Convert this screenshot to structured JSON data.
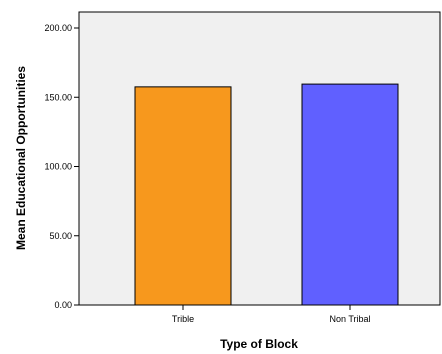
{
  "chart_data": {
    "type": "bar",
    "categories": [
      "Trible",
      "Non Tribal"
    ],
    "values": [
      157.5,
      159.5
    ],
    "xlabel": "Type of Block",
    "ylabel": "Mean Educational Opportunities",
    "ylim": [
      0,
      200
    ],
    "yticks": [
      "0.00",
      "50.00",
      "100.00",
      "150.00",
      "200.00"
    ],
    "grid": false,
    "legend": "none",
    "bar_colors": [
      "#f7981d",
      "#6060ff"
    ],
    "plot_background": "#f0f0f0"
  }
}
